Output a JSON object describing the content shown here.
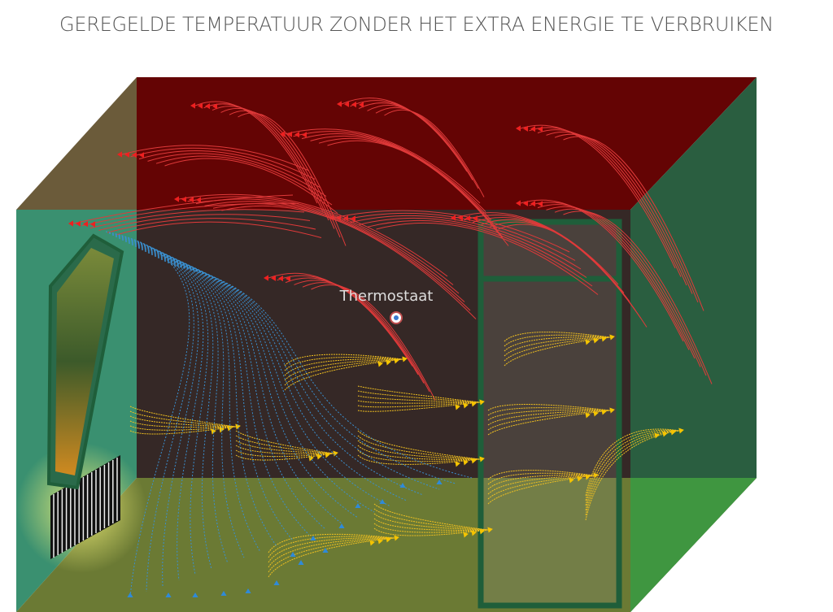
{
  "header": {
    "title": "GEREGELDE TEMPERATUUR ZONDER HET EXTRA ENERGIE TE VERBRUIKEN"
  },
  "labels": {
    "thermostat": "Thermostaat"
  }
}
